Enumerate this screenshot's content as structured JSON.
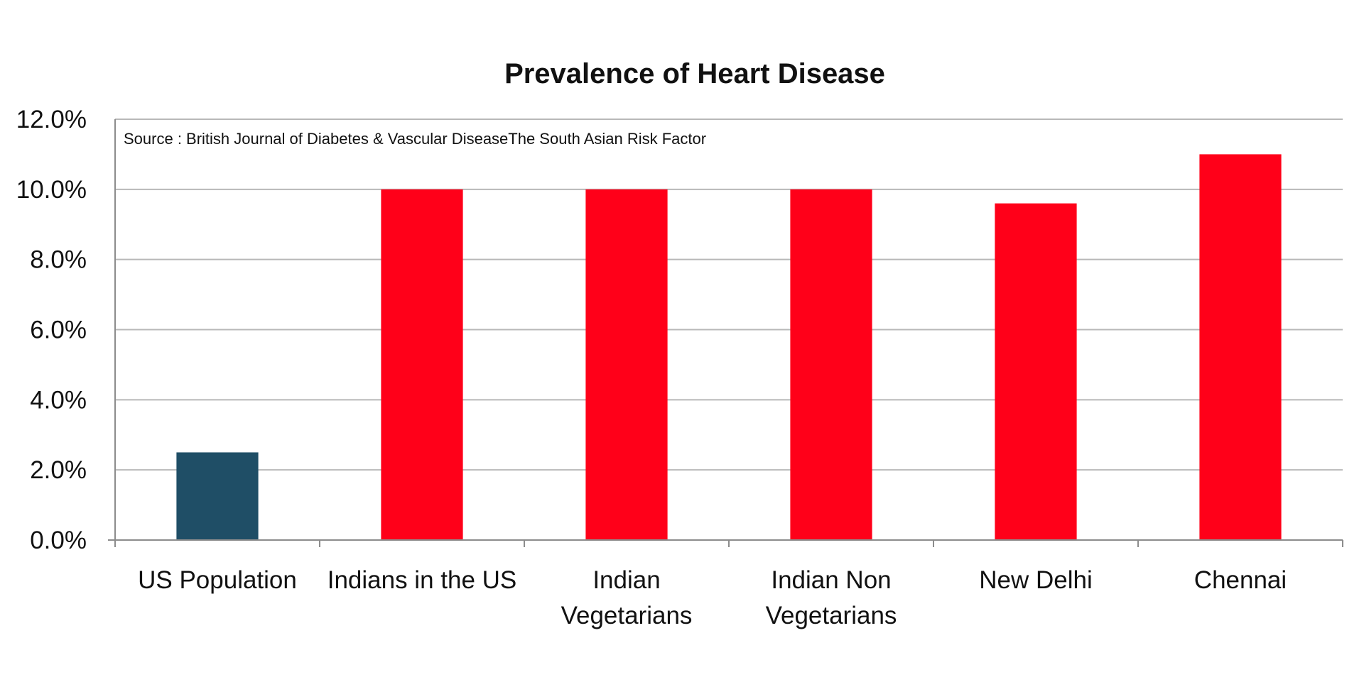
{
  "chart_data": {
    "type": "bar",
    "title": "Prevalence of Heart Disease",
    "source_note": "Source : British Journal of Diabetes & Vascular DiseaseThe South Asian Risk Factor",
    "categories": [
      [
        "US Population"
      ],
      [
        "Indians in the US"
      ],
      [
        "Indian",
        "Vegetarians"
      ],
      [
        "Indian Non",
        "Vegetarians"
      ],
      [
        "New Delhi"
      ],
      [
        "Chennai"
      ]
    ],
    "values": [
      2.5,
      10.0,
      10.0,
      10.0,
      9.6,
      11.0
    ],
    "bar_colors": [
      "#1f4e66",
      "#ff0019",
      "#ff0019",
      "#ff0019",
      "#ff0019",
      "#ff0019"
    ],
    "yticks": [
      "0.0%",
      "2.0%",
      "4.0%",
      "6.0%",
      "8.0%",
      "10.0%",
      "12.0%"
    ],
    "ylim": [
      0,
      12
    ],
    "xlabel": "",
    "ylabel": "",
    "grid": true,
    "legend": "none"
  }
}
